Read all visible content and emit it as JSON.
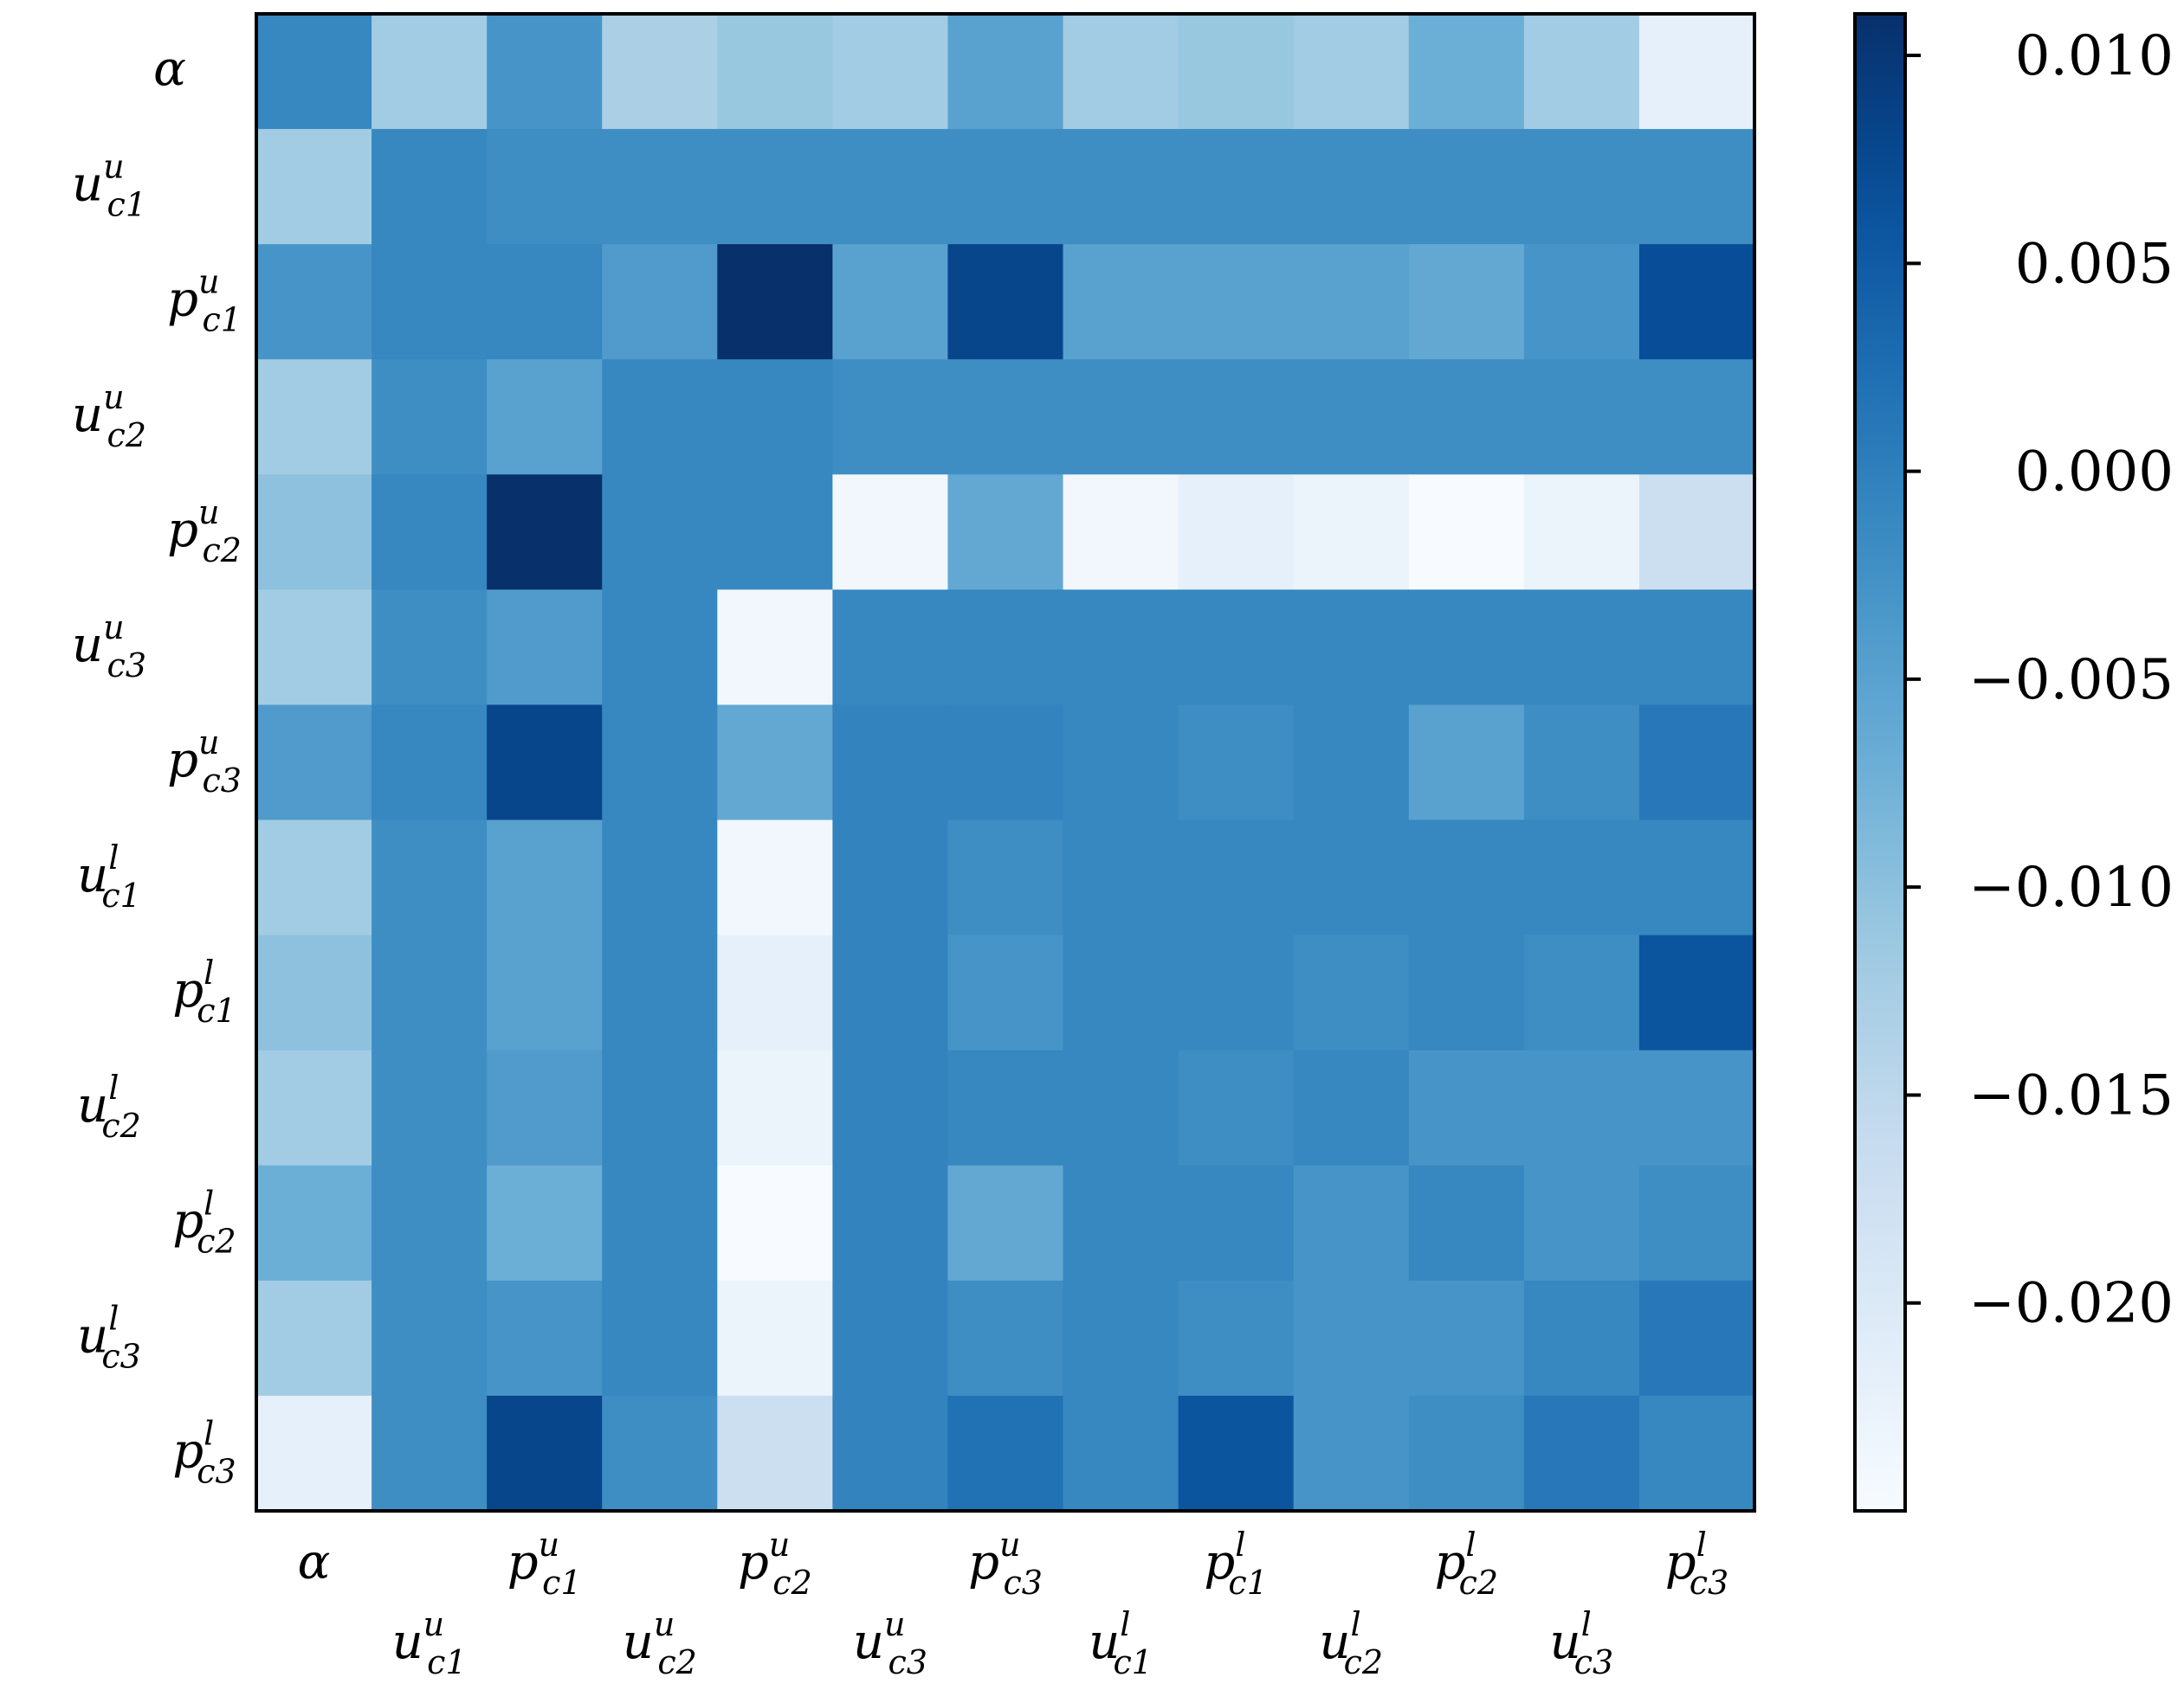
{
  "chart_data": {
    "type": "heatmap",
    "title": "",
    "xlabel": "",
    "ylabel": "",
    "labels": [
      {
        "base": "α",
        "sub": "",
        "sup": ""
      },
      {
        "base": "u",
        "sub": "c1",
        "sup": "u"
      },
      {
        "base": "p",
        "sub": "c1",
        "sup": "u"
      },
      {
        "base": "u",
        "sub": "c2",
        "sup": "u"
      },
      {
        "base": "p",
        "sub": "c2",
        "sup": "u"
      },
      {
        "base": "u",
        "sub": "c3",
        "sup": "u"
      },
      {
        "base": "p",
        "sub": "c3",
        "sup": "u"
      },
      {
        "base": "u",
        "sub": "c1",
        "sup": "l"
      },
      {
        "base": "p",
        "sub": "c1",
        "sup": "l"
      },
      {
        "base": "u",
        "sub": "c2",
        "sup": "l"
      },
      {
        "base": "p",
        "sub": "c2",
        "sup": "l"
      },
      {
        "base": "u",
        "sub": "c3",
        "sup": "l"
      },
      {
        "base": "p",
        "sub": "c3",
        "sup": "l"
      }
    ],
    "matrix": [
      [
        -0.001,
        -0.012,
        -0.003,
        -0.013,
        -0.011,
        -0.012,
        -0.005,
        -0.012,
        -0.011,
        -0.012,
        -0.007,
        -0.012,
        -0.022
      ],
      [
        -0.012,
        -0.001,
        -0.002,
        -0.002,
        -0.002,
        -0.002,
        -0.002,
        -0.002,
        -0.002,
        -0.002,
        -0.002,
        -0.002,
        -0.002
      ],
      [
        -0.003,
        -0.001,
        -0.001,
        -0.004,
        0.011,
        -0.005,
        0.008,
        -0.005,
        -0.005,
        -0.005,
        -0.006,
        -0.003,
        0.007
      ],
      [
        -0.012,
        -0.002,
        -0.005,
        -0.001,
        -0.001,
        -0.002,
        -0.002,
        -0.002,
        -0.002,
        -0.002,
        -0.002,
        -0.002,
        -0.002
      ],
      [
        -0.01,
        -0.001,
        0.011,
        -0.001,
        -0.001,
        -0.024,
        -0.006,
        -0.024,
        -0.022,
        -0.023,
        -0.025,
        -0.023,
        -0.017
      ],
      [
        -0.012,
        -0.002,
        -0.004,
        -0.001,
        -0.024,
        -0.001,
        -0.001,
        -0.001,
        -0.001,
        -0.001,
        -0.001,
        -0.001,
        -0.001
      ],
      [
        -0.004,
        -0.001,
        0.008,
        -0.001,
        -0.006,
        -0.0005,
        -0.0005,
        -0.001,
        -0.002,
        -0.001,
        -0.005,
        -0.002,
        0.001
      ],
      [
        -0.012,
        -0.002,
        -0.005,
        -0.001,
        -0.024,
        -0.0005,
        -0.002,
        -0.001,
        -0.001,
        -0.001,
        -0.001,
        -0.001,
        -0.001
      ],
      [
        -0.01,
        -0.002,
        -0.005,
        -0.001,
        -0.022,
        -0.0005,
        -0.003,
        -0.001,
        -0.001,
        -0.002,
        -0.001,
        -0.002,
        0.006
      ],
      [
        -0.012,
        -0.002,
        -0.004,
        -0.001,
        -0.023,
        -0.0005,
        -0.001,
        -0.001,
        -0.002,
        -0.001,
        -0.003,
        -0.003,
        -0.003
      ],
      [
        -0.007,
        -0.002,
        -0.007,
        -0.001,
        -0.025,
        -0.0005,
        -0.006,
        -0.001,
        -0.001,
        -0.003,
        -0.001,
        -0.003,
        -0.002
      ],
      [
        -0.012,
        -0.002,
        -0.003,
        -0.001,
        -0.023,
        -0.0005,
        -0.002,
        -0.001,
        -0.002,
        -0.003,
        -0.003,
        -0.001,
        0.001
      ],
      [
        -0.022,
        -0.002,
        0.008,
        -0.002,
        -0.017,
        -0.0005,
        0.002,
        -0.001,
        0.006,
        -0.003,
        -0.002,
        0.001,
        -0.001
      ]
    ],
    "vmin": -0.025,
    "vmax": 0.011,
    "colormap": "Blues",
    "colorbar": {
      "ticks": [
        0.01,
        0.005,
        0.0,
        -0.005,
        -0.01,
        -0.015,
        -0.02
      ],
      "tick_labels": [
        "0.010",
        "0.005",
        "0.000",
        "−0.005",
        "−0.010",
        "−0.015",
        "−0.020"
      ],
      "position": "right"
    },
    "grid": false
  }
}
